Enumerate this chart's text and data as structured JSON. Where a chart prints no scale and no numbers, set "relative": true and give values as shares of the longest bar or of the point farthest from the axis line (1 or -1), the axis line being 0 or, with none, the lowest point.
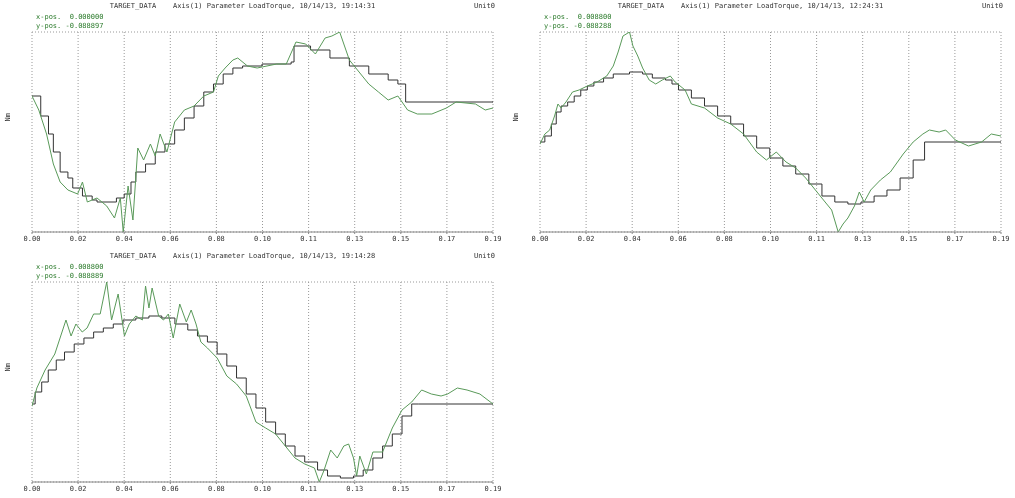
{
  "chart_data": [
    {
      "type": "line",
      "title": "TARGET_DATA    Axis(1) Parameter LoadTorque, 10/14/13, 19:14:31",
      "subtitle": "Unit0",
      "ylabel": "Nm",
      "annotations": [
        "x-pos.  0.000000",
        "y-pos. -0.088897"
      ],
      "relative": true,
      "grid": true,
      "legend": false,
      "marker": "none",
      "xlim": [
        0,
        0.19
      ],
      "xticks": [
        {
          "value": 0,
          "label": "0.00"
        },
        {
          "value": 0.019,
          "label": "0.02"
        },
        {
          "value": 0.038,
          "label": "0.04"
        },
        {
          "value": 0.057,
          "label": "0.06"
        },
        {
          "value": 0.076,
          "label": "0.08"
        },
        {
          "value": 0.095,
          "label": "0.10"
        },
        {
          "value": 0.114,
          "label": "0.11"
        },
        {
          "value": 0.133,
          "label": "0.13"
        },
        {
          "value": 0.152,
          "label": "0.15"
        },
        {
          "value": 0.171,
          "label": "0.17"
        },
        {
          "value": 0.19,
          "label": "0.19"
        }
      ],
      "series": [
        {
          "type": "step",
          "color": "#333333",
          "x": [
            0,
            0.0036,
            0.0068,
            0.0088,
            0.0116,
            0.0148,
            0.0168,
            0.0208,
            0.0248,
            0.0268,
            0.0348,
            0.038,
            0.0408,
            0.0428,
            0.0468,
            0.0508,
            0.0548,
            0.0588,
            0.0628,
            0.0668,
            0.0708,
            0.0748,
            0.0788,
            0.0828,
            0.0868,
            0.0948,
            0.1068,
            0.108,
            0.1148,
            0.1228,
            0.1308,
            0.1388,
            0.1468,
            0.1508,
            0.154,
            0.19
          ],
          "values": [
            0.68,
            0.58,
            0.49,
            0.4,
            0.3,
            0.27,
            0.22,
            0.18,
            0.16,
            0.15,
            0.17,
            0.19,
            0.25,
            0.3,
            0.34,
            0.4,
            0.44,
            0.51,
            0.57,
            0.63,
            0.7,
            0.74,
            0.79,
            0.82,
            0.83,
            0.84,
            0.85,
            0.93,
            0.91,
            0.87,
            0.83,
            0.79,
            0.76,
            0.74,
            0.65,
            0.65
          ]
        },
        {
          "type": "line",
          "color": "#5a9a5a",
          "x": [
            0,
            0.0028,
            0.006,
            0.0088,
            0.0116,
            0.0148,
            0.0188,
            0.0208,
            0.0228,
            0.0268,
            0.0308,
            0.034,
            0.0364,
            0.0376,
            0.0396,
            0.0416,
            0.0436,
            0.046,
            0.0488,
            0.0508,
            0.0528,
            0.0556,
            0.0588,
            0.0628,
            0.0668,
            0.0708,
            0.0748,
            0.0768,
            0.0796,
            0.0828,
            0.0848,
            0.0888,
            0.0928,
            0.1008,
            0.1048,
            0.1088,
            0.1128,
            0.1168,
            0.1208,
            0.1236,
            0.1268,
            0.1308,
            0.1348,
            0.1388,
            0.1428,
            0.1468,
            0.1508,
            0.1548,
            0.1588,
            0.1648,
            0.1708,
            0.1748,
            0.1828,
            0.1868,
            0.19
          ],
          "values": [
            0.68,
            0.61,
            0.49,
            0.34,
            0.25,
            0.21,
            0.19,
            0.25,
            0.15,
            0.17,
            0.13,
            0.07,
            0.17,
            0,
            0.23,
            0.06,
            0.42,
            0.36,
            0.44,
            0.38,
            0.49,
            0.4,
            0.55,
            0.61,
            0.63,
            0.68,
            0.7,
            0.78,
            0.82,
            0.86,
            0.87,
            0.83,
            0.82,
            0.84,
            0.84,
            0.95,
            0.94,
            0.89,
            0.97,
            0.98,
            1,
            0.86,
            0.8,
            0.74,
            0.7,
            0.66,
            0.68,
            0.61,
            0.59,
            0.59,
            0.62,
            0.65,
            0.64,
            0.61,
            0.62
          ]
        }
      ]
    },
    {
      "type": "line",
      "title": "TARGET_DATA    Axis(1) Parameter LoadTorque, 10/14/13, 12:24:31",
      "subtitle": "Unit0",
      "ylabel": "Nm",
      "annotations": [
        "x-pos.  0.008800",
        "y-pos. -0.088288"
      ],
      "relative": true,
      "grid": true,
      "legend": false,
      "marker": "none",
      "xlim": [
        0,
        0.19
      ],
      "xticks": [
        {
          "value": 0,
          "label": "0.00"
        },
        {
          "value": 0.019,
          "label": "0.02"
        },
        {
          "value": 0.038,
          "label": "0.04"
        },
        {
          "value": 0.057,
          "label": "0.06"
        },
        {
          "value": 0.076,
          "label": "0.08"
        },
        {
          "value": 0.095,
          "label": "0.10"
        },
        {
          "value": 0.114,
          "label": "0.11"
        },
        {
          "value": 0.133,
          "label": "0.13"
        },
        {
          "value": 0.152,
          "label": "0.15"
        },
        {
          "value": 0.171,
          "label": "0.17"
        },
        {
          "value": 0.19,
          "label": "0.19"
        }
      ],
      "series": [
        {
          "type": "step",
          "color": "#333333",
          "x": [
            0,
            0.002,
            0.0047,
            0.0067,
            0.0087,
            0.0114,
            0.0141,
            0.0168,
            0.0195,
            0.0222,
            0.0262,
            0.0302,
            0.0369,
            0.0423,
            0.0463,
            0.0517,
            0.0544,
            0.0571,
            0.0624,
            0.0678,
            0.0732,
            0.0786,
            0.0839,
            0.0893,
            0.0947,
            0.1001,
            0.1054,
            0.1108,
            0.1162,
            0.1215,
            0.1269,
            0.1323,
            0.1377,
            0.143,
            0.1484,
            0.1538,
            0.1585,
            0.19
          ],
          "values": [
            0.45,
            0.48,
            0.54,
            0.6,
            0.63,
            0.65,
            0.68,
            0.71,
            0.73,
            0.75,
            0.77,
            0.79,
            0.8,
            0.79,
            0.77,
            0.76,
            0.74,
            0.71,
            0.67,
            0.63,
            0.58,
            0.54,
            0.48,
            0.42,
            0.37,
            0.33,
            0.29,
            0.24,
            0.18,
            0.15,
            0.14,
            0.15,
            0.18,
            0.21,
            0.27,
            0.36,
            0.45,
            0.45
          ]
        },
        {
          "type": "line",
          "color": "#5a9a5a",
          "x": [
            0,
            0.002,
            0.004,
            0.006,
            0.0074,
            0.0087,
            0.0107,
            0.0134,
            0.0161,
            0.0195,
            0.0235,
            0.0275,
            0.0302,
            0.0322,
            0.0342,
            0.0369,
            0.0383,
            0.0403,
            0.0423,
            0.045,
            0.0477,
            0.0504,
            0.0537,
            0.0557,
            0.0598,
            0.0624,
            0.0678,
            0.0732,
            0.0786,
            0.0839,
            0.0893,
            0.0933,
            0.0974,
            0.1014,
            0.1054,
            0.1095,
            0.1135,
            0.1175,
            0.1202,
            0.1229,
            0.1249,
            0.1269,
            0.1296,
            0.1316,
            0.1336,
            0.1363,
            0.1403,
            0.1444,
            0.1497,
            0.1538,
            0.1578,
            0.1605,
            0.1645,
            0.1672,
            0.1712,
            0.1766,
            0.182,
            0.186,
            0.19
          ],
          "values": [
            0.44,
            0.49,
            0.51,
            0.58,
            0.64,
            0.62,
            0.65,
            0.7,
            0.71,
            0.73,
            0.75,
            0.78,
            0.83,
            0.9,
            0.98,
            1,
            0.93,
            0.88,
            0.82,
            0.76,
            0.74,
            0.76,
            0.78,
            0.75,
            0.71,
            0.64,
            0.62,
            0.57,
            0.54,
            0.49,
            0.4,
            0.36,
            0.4,
            0.35,
            0.32,
            0.27,
            0.21,
            0.15,
            0.11,
            0,
            0.04,
            0.07,
            0.13,
            0.2,
            0.15,
            0.21,
            0.26,
            0.3,
            0.39,
            0.45,
            0.49,
            0.51,
            0.5,
            0.51,
            0.46,
            0.43,
            0.45,
            0.49,
            0.48
          ]
        }
      ]
    },
    {
      "type": "line",
      "title": "TARGET_DATA    Axis(1) Parameter LoadTorque, 10/14/13, 19:14:28",
      "subtitle": "Unit0",
      "ylabel": "Nm",
      "annotations": [
        "x-pos.  0.008800",
        "y-pos. -0.088889"
      ],
      "relative": true,
      "grid": true,
      "legend": false,
      "marker": "none",
      "xlim": [
        0,
        0.19
      ],
      "xticks": [
        {
          "value": 0,
          "label": "0.00"
        },
        {
          "value": 0.019,
          "label": "0.02"
        },
        {
          "value": 0.038,
          "label": "0.04"
        },
        {
          "value": 0.057,
          "label": "0.06"
        },
        {
          "value": 0.076,
          "label": "0.08"
        },
        {
          "value": 0.095,
          "label": "0.10"
        },
        {
          "value": 0.114,
          "label": "0.11"
        },
        {
          "value": 0.133,
          "label": "0.13"
        },
        {
          "value": 0.152,
          "label": "0.15"
        },
        {
          "value": 0.171,
          "label": "0.17"
        },
        {
          "value": 0.19,
          "label": "0.19"
        }
      ],
      "series": [
        {
          "type": "step",
          "color": "#333333",
          "x": [
            0,
            0.0013,
            0.004,
            0.0067,
            0.01,
            0.0134,
            0.0174,
            0.0214,
            0.0254,
            0.0294,
            0.0335,
            0.0375,
            0.0428,
            0.0482,
            0.0535,
            0.0589,
            0.0642,
            0.0682,
            0.0723,
            0.0763,
            0.0803,
            0.0843,
            0.0883,
            0.0923,
            0.0963,
            0.1004,
            0.1044,
            0.1084,
            0.1124,
            0.1177,
            0.1218,
            0.1271,
            0.1325,
            0.1365,
            0.1405,
            0.1445,
            0.1485,
            0.1525,
            0.1565,
            0.1592,
            0.19
          ],
          "values": [
            0.39,
            0.45,
            0.5,
            0.56,
            0.61,
            0.65,
            0.69,
            0.72,
            0.75,
            0.77,
            0.79,
            0.81,
            0.82,
            0.83,
            0.82,
            0.79,
            0.76,
            0.73,
            0.7,
            0.64,
            0.58,
            0.52,
            0.44,
            0.37,
            0.3,
            0.24,
            0.18,
            0.13,
            0.1,
            0.06,
            0.03,
            0.02,
            0.03,
            0.06,
            0.12,
            0.18,
            0.24,
            0.33,
            0.39,
            0.39,
            0.39
          ]
        },
        {
          "type": "line",
          "color": "#5a9a5a",
          "x": [
            0,
            0.002,
            0.0054,
            0.0094,
            0.014,
            0.0161,
            0.0181,
            0.0207,
            0.0227,
            0.0254,
            0.0281,
            0.0308,
            0.0328,
            0.0355,
            0.0381,
            0.0401,
            0.0428,
            0.0455,
            0.0468,
            0.0482,
            0.0495,
            0.0522,
            0.0542,
            0.0562,
            0.0582,
            0.0609,
            0.0636,
            0.0656,
            0.0676,
            0.0696,
            0.0723,
            0.0763,
            0.0803,
            0.0843,
            0.0883,
            0.0923,
            0.0963,
            0.1004,
            0.1044,
            0.1084,
            0.1124,
            0.1164,
            0.1184,
            0.1204,
            0.1231,
            0.1258,
            0.1285,
            0.1305,
            0.1325,
            0.1338,
            0.1351,
            0.1378,
            0.1405,
            0.1445,
            0.1485,
            0.1525,
            0.1565,
            0.1606,
            0.1646,
            0.1686,
            0.1713,
            0.1753,
            0.1793,
            0.1846,
            0.19
          ],
          "values": [
            0.38,
            0.47,
            0.56,
            0.64,
            0.81,
            0.73,
            0.79,
            0.75,
            0.77,
            0.84,
            0.84,
            1,
            0.81,
            0.94,
            0.73,
            0.79,
            0.83,
            0.81,
            0.98,
            0.87,
            0.97,
            0.83,
            0.81,
            0.84,
            0.72,
            0.89,
            0.8,
            0.86,
            0.79,
            0.7,
            0.67,
            0.62,
            0.53,
            0.49,
            0.43,
            0.3,
            0.27,
            0.24,
            0.18,
            0.12,
            0.09,
            0.07,
            0,
            0.06,
            0.16,
            0.12,
            0.18,
            0.19,
            0.12,
            0.03,
            0.13,
            0.04,
            0.15,
            0.15,
            0.27,
            0.36,
            0.4,
            0.46,
            0.44,
            0.43,
            0.44,
            0.47,
            0.46,
            0.44,
            0.39
          ]
        }
      ]
    }
  ]
}
